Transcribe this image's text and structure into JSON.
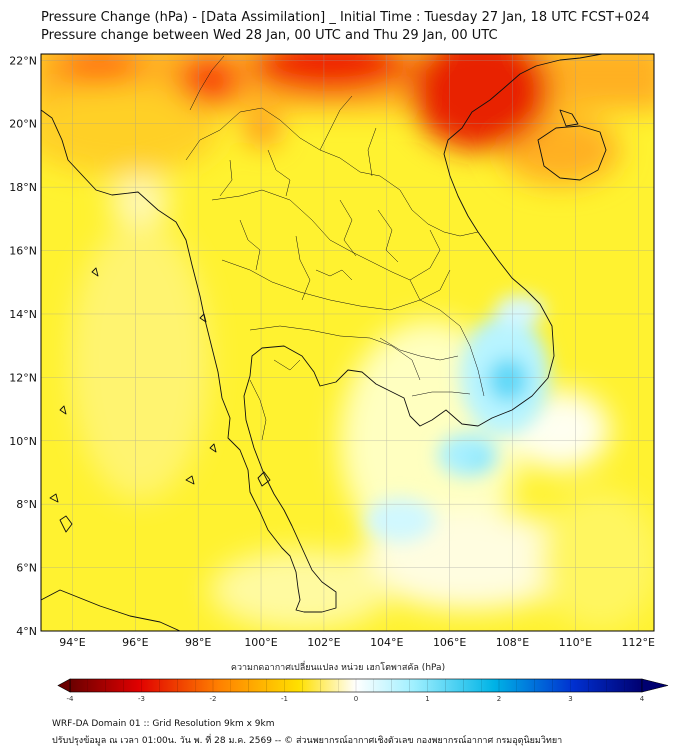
{
  "header": {
    "title": "Pressure Change (hPa) - [Data Assimilation] _ Initial Time : Tuesday 27 Jan, 18 UTC FCST+024",
    "subtitle": "Pressure change between Wed 28 Jan, 00 UTC and Thu 29 Jan, 00 UTC"
  },
  "map": {
    "lon_range": [
      93,
      112.5
    ],
    "lat_range": [
      4,
      22.2
    ],
    "lat_ticks": [
      "22°N",
      "20°N",
      "18°N",
      "16°N",
      "14°N",
      "12°N",
      "10°N",
      "8°N",
      "6°N",
      "4°N"
    ],
    "lon_ticks": [
      "94°E",
      "96°E",
      "98°E",
      "100°E",
      "102°E",
      "104°E",
      "106°E",
      "108°E",
      "110°E",
      "112°E"
    ],
    "field": "pressure change (hPa)"
  },
  "colorbar": {
    "title": "ความกดอากาศเปลี่ยนแปลง หน่วย เฮกโตพาสคัล (hPa)",
    "range": [
      -4,
      4
    ],
    "tick_labels": [
      "-4",
      "-3",
      "-2",
      "-1",
      "0",
      "1",
      "2",
      "3",
      "4"
    ],
    "colors": {
      "min": "#6b0000",
      "strong_negative": "#e00000",
      "negative": "#ff8000",
      "weak_negative": "#ffe000",
      "zero": "#ffffff",
      "weak_positive": "#a0f0ff",
      "positive": "#00b4e6",
      "strong_positive": "#0030d0",
      "max": "#000070"
    }
  },
  "footer": {
    "line1": "WRF-DA Domain 01 :: Grid Resolution 9km x 9km",
    "line2": "ปรับปรุงข้อมูล ณ เวลา 01:00น. วัน พ. ที่ 28 ม.ค. 2569 -- © ส่วนพยากรณ์อากาศเชิงตัวเลข กองพยากรณ์อากาศ กรมอุตุนิยมวิทยา"
  }
}
